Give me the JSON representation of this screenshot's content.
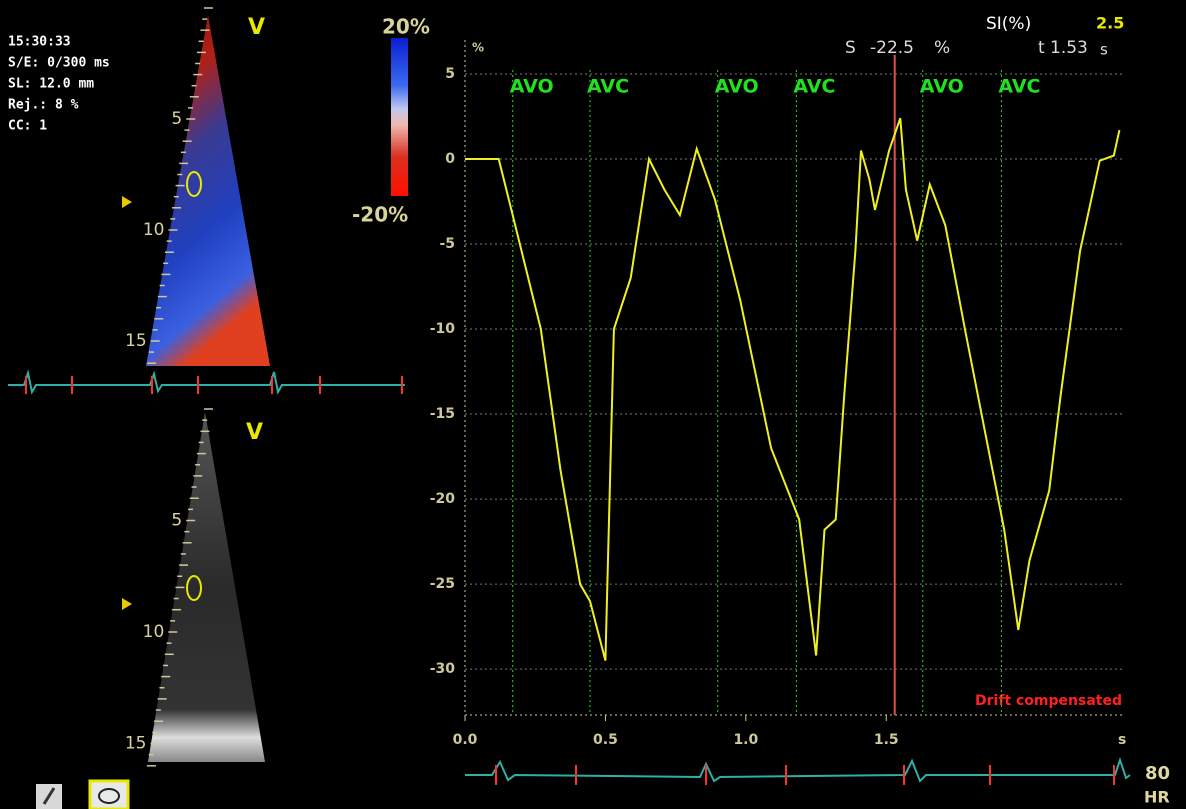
{
  "info": {
    "time": "15:30:33",
    "se": "S/E: 0/300 ms",
    "sl": "SL: 12.0 mm",
    "rej": "Rej.: 8 %",
    "cc": "CC: 1"
  },
  "top_view": {
    "label": "V",
    "scale_max": "20%",
    "scale_min": "-20%",
    "depth_ticks": [
      5,
      10,
      15
    ]
  },
  "bottom_view": {
    "label": "V",
    "depth_ticks": [
      5,
      10,
      15
    ]
  },
  "hr": {
    "value": 80,
    "label": "HR"
  },
  "chart_data": {
    "type": "line",
    "y_unit": "%",
    "x_unit": "s",
    "note": "Drift compensated",
    "readout": {
      "label": "SI(%)",
      "value": 2.5
    },
    "cursor": {
      "strain_label": "S",
      "strain": -22.5,
      "strain_unit": "%",
      "t_label": "t",
      "t": 1.53,
      "t_unit": "s",
      "color": "#e05050"
    },
    "color": "#f0f020",
    "x": [
      0,
      0.12,
      0.17,
      0.27,
      0.34,
      0.41,
      0.445,
      0.5,
      0.53,
      0.59,
      0.655,
      0.71,
      0.765,
      0.825,
      0.89,
      0.98,
      1.09,
      1.19,
      1.25,
      1.28,
      1.32,
      1.35,
      1.39,
      1.41,
      1.44,
      1.46,
      1.51,
      1.55,
      1.57,
      1.61,
      1.655,
      1.71,
      1.78,
      1.87,
      1.92,
      1.97,
      2.01,
      2.08,
      2.12,
      2.19,
      2.26,
      2.31,
      2.33
    ],
    "values": [
      0,
      0,
      -3.3,
      -10,
      -18.3,
      -25,
      -26,
      -29.5,
      -10,
      -7,
      0,
      -1.8,
      -3.3,
      0.6,
      -2.4,
      -8.3,
      -17,
      -21.2,
      -29.2,
      -21.8,
      -21.2,
      -14,
      -5.4,
      0.5,
      -1.2,
      -3,
      0.5,
      2.4,
      -1.8,
      -4.8,
      -1.5,
      -3.9,
      -10,
      -17.6,
      -21.8,
      -27.7,
      -23.6,
      -19.5,
      -14,
      -5.4,
      -0.1,
      0.2,
      1.7
    ],
    "annotations": [
      {
        "text": "AVO",
        "x": 0.17
      },
      {
        "text": "AVC",
        "x": 0.445
      },
      {
        "text": "AVO",
        "x": 0.9
      },
      {
        "text": "AVC",
        "x": 1.18
      },
      {
        "text": "AVO",
        "x": 1.63
      },
      {
        "text": "AVC",
        "x": 1.91
      }
    ],
    "annotation_color": "#20e020",
    "xlim": [
      0,
      2.35
    ],
    "ylim": [
      -32.7,
      7
    ],
    "xticks": [
      {
        "value": 0,
        "label": "0.0"
      },
      {
        "value": 0.5,
        "label": "0.5"
      },
      {
        "value": 1,
        "label": "1.0"
      },
      {
        "value": 1.5,
        "label": "1.5"
      }
    ],
    "yticks": [
      5,
      0,
      -5,
      -10,
      -15,
      -20,
      -25,
      -30
    ],
    "grid": true
  }
}
